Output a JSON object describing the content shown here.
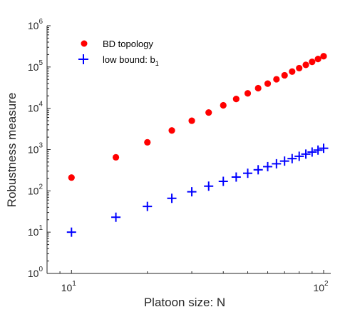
{
  "chart_data": {
    "type": "scatter",
    "xlabel": "Platoon size: N",
    "ylabel": "Robustness measure",
    "xscale": "log",
    "yscale": "log",
    "xlim": [
      8,
      100
    ],
    "ylim": [
      1,
      1000000
    ],
    "grid": false,
    "legend_position": "top-left",
    "x_ticks": [
      {
        "base": "10",
        "exp": "1",
        "value": 10
      },
      {
        "base": "10",
        "exp": "2",
        "value": 100
      }
    ],
    "y_ticks": [
      {
        "base": "10",
        "exp": "0",
        "value": 1
      },
      {
        "base": "10",
        "exp": "1",
        "value": 10
      },
      {
        "base": "10",
        "exp": "2",
        "value": 100
      },
      {
        "base": "10",
        "exp": "3",
        "value": 1000
      },
      {
        "base": "10",
        "exp": "4",
        "value": 10000
      },
      {
        "base": "10",
        "exp": "5",
        "value": 100000
      },
      {
        "base": "10",
        "exp": "6",
        "value": 1000000
      }
    ],
    "series": [
      {
        "name": "BD topology",
        "marker": "circle",
        "color": "#ff0000",
        "x": [
          10,
          15,
          20,
          25,
          30,
          35,
          40,
          45,
          50,
          55,
          60,
          65,
          70,
          75,
          80,
          85,
          90,
          95,
          100
        ],
        "y": [
          210,
          650,
          1500,
          2900,
          5000,
          7900,
          11800,
          16800,
          23000,
          30700,
          39600,
          50400,
          63000,
          77500,
          93900,
          112400,
          133200,
          156300,
          182100
        ]
      },
      {
        "name": "low bound: b",
        "name_subscript": "1",
        "marker": "plus",
        "color": "#0000ff",
        "x": [
          10,
          15,
          20,
          25,
          30,
          35,
          40,
          45,
          50,
          55,
          60,
          65,
          70,
          75,
          80,
          85,
          90,
          95,
          100
        ],
        "y": [
          10,
          23,
          42,
          66,
          95,
          130,
          170,
          216,
          267,
          324,
          386,
          453,
          526,
          604,
          688,
          777,
          871,
          971,
          1076
        ]
      }
    ]
  }
}
